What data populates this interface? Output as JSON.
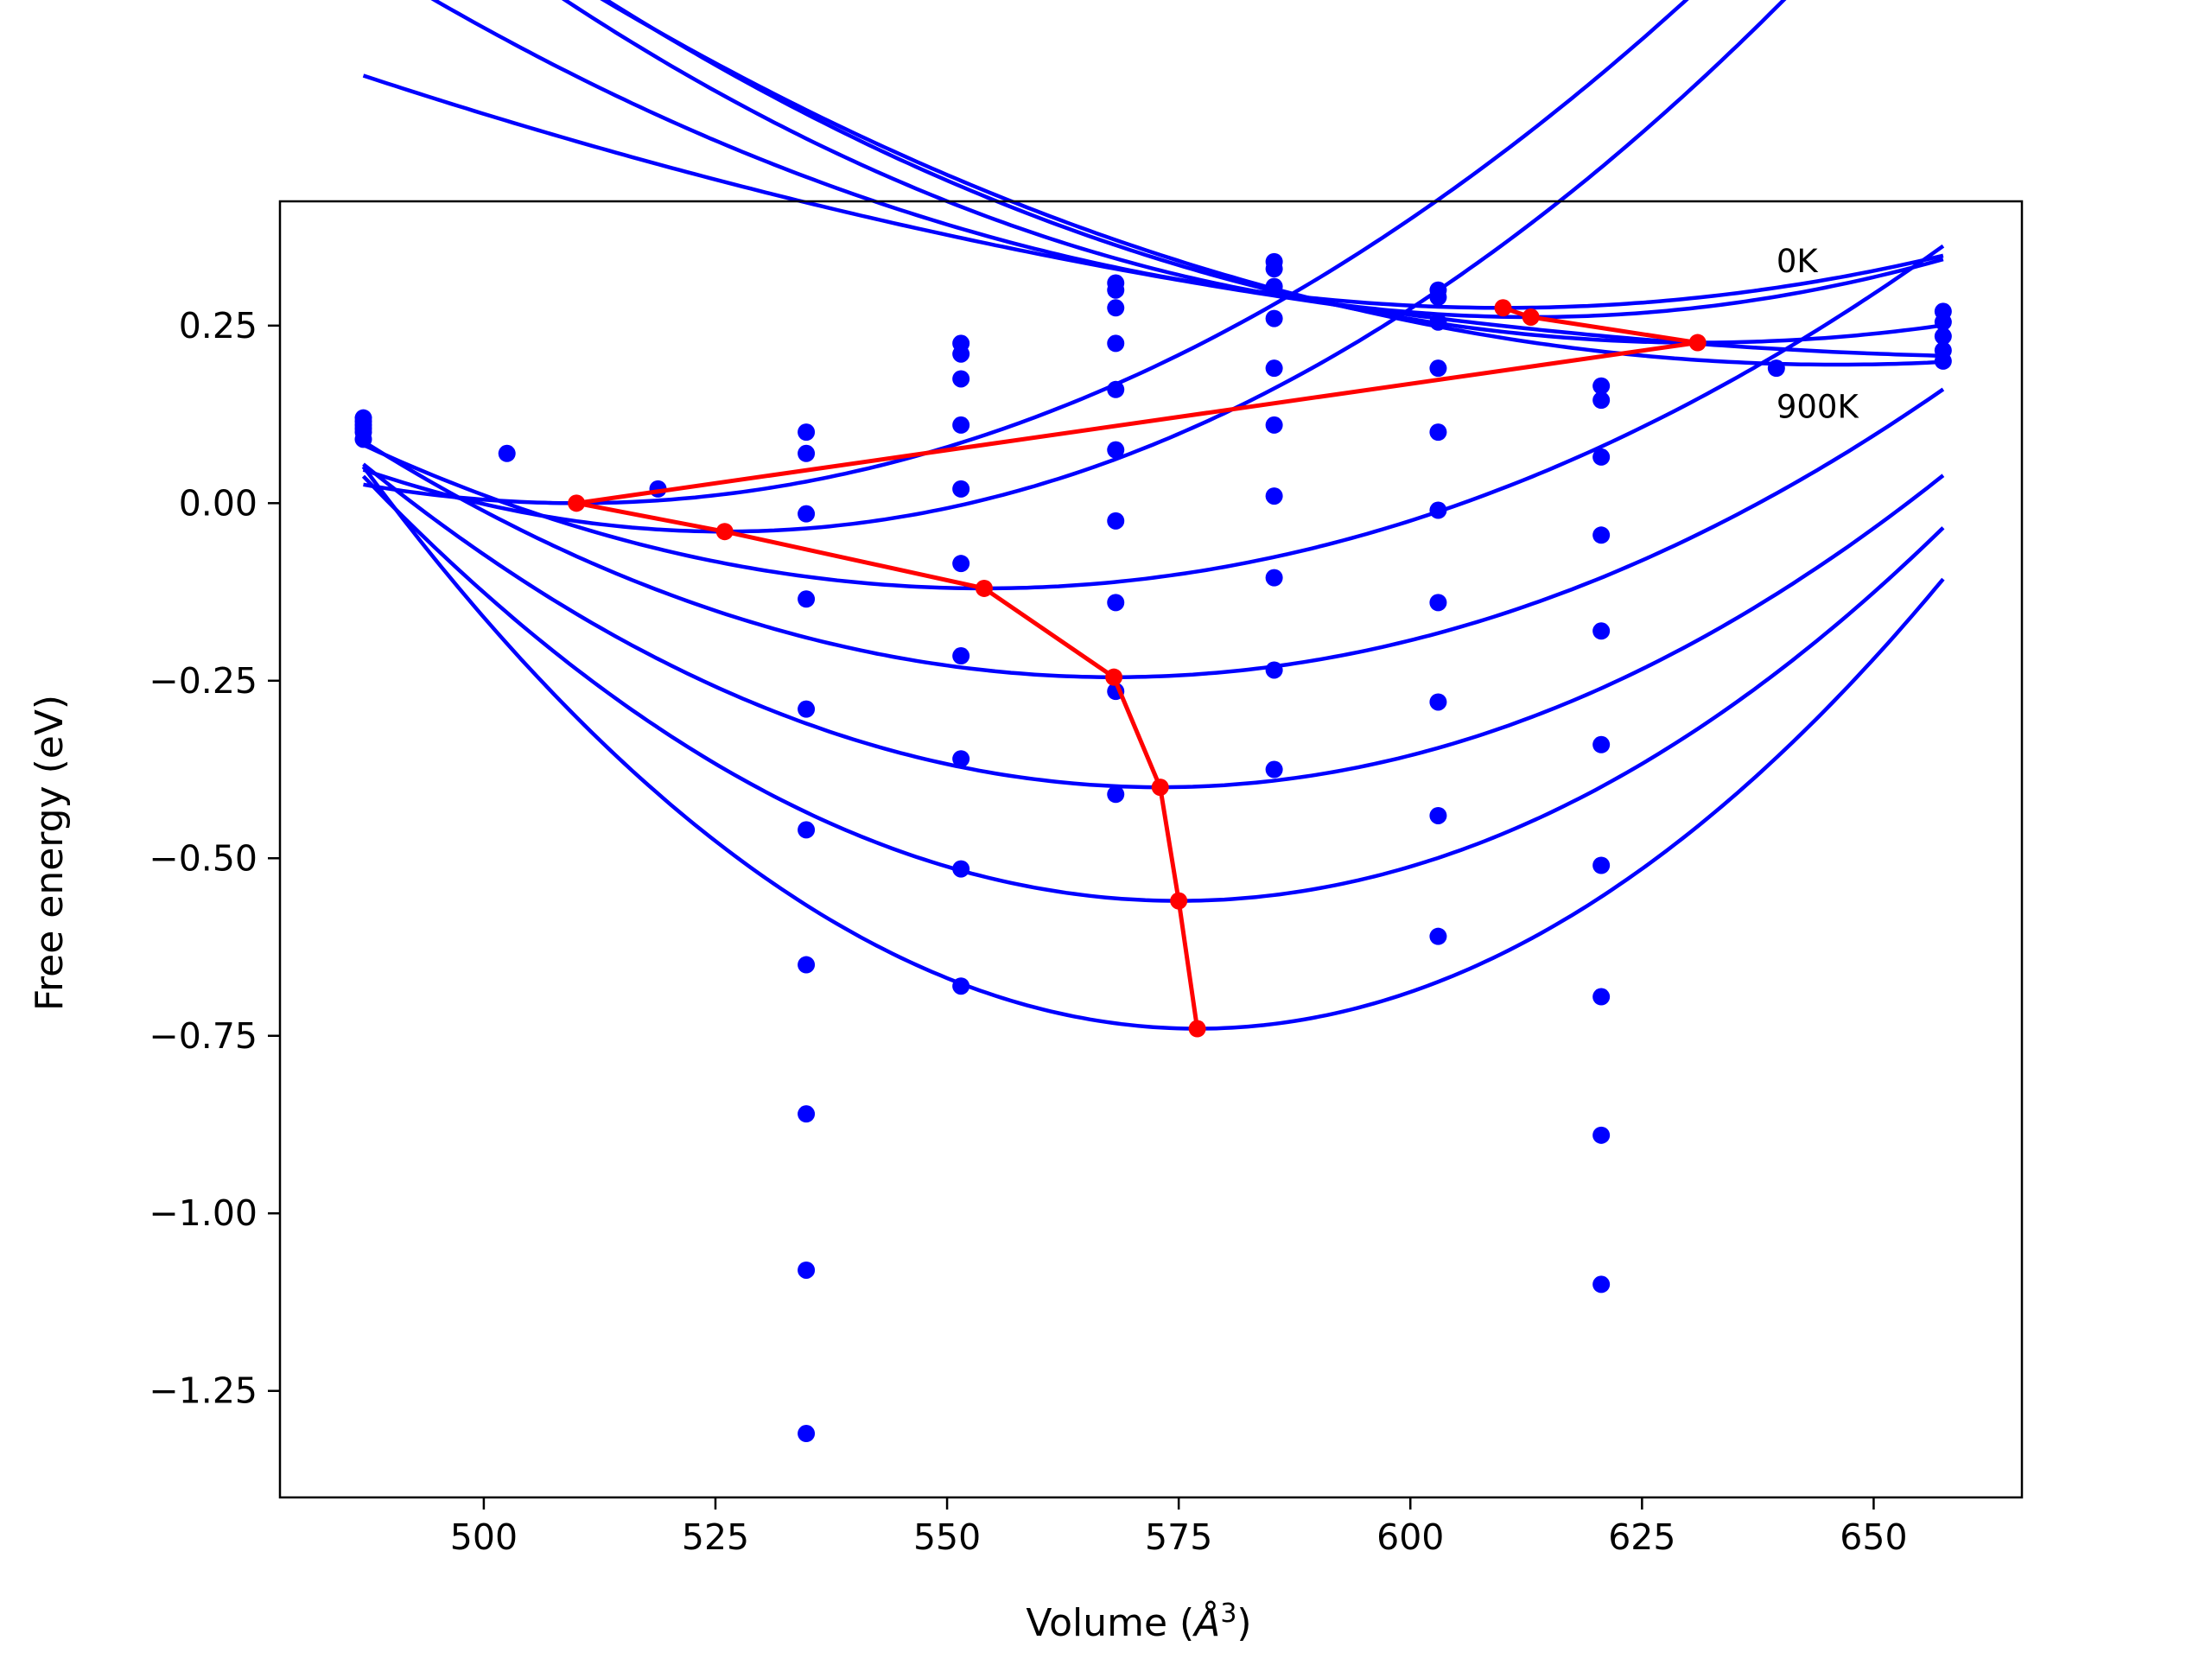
{
  "chart_data": {
    "type": "scatter",
    "xlabel_prefix": "Volume (",
    "xlabel_unit": "Å",
    "xlabel_exp": "3",
    "xlabel_suffix": ")",
    "ylabel": "Free energy (eV)",
    "xlim": [
      478,
      666
    ],
    "ylim": [
      -1.4,
      0.425
    ],
    "x_ticks": [
      500,
      525,
      550,
      575,
      600,
      625,
      650
    ],
    "x_tick_labels": [
      "500",
      "525",
      "550",
      "575",
      "600",
      "625",
      "650"
    ],
    "y_ticks": [
      0.25,
      0.0,
      -0.25,
      -0.5,
      -0.75,
      -1.0,
      -1.25
    ],
    "y_tick_labels": [
      "0.25",
      "0.00",
      "−0.25",
      "−0.50",
      "−0.75",
      "−1.00",
      "−1.25"
    ],
    "annotations": [
      {
        "text": "0K",
        "x": 639.5,
        "y": 0.325
      },
      {
        "text": "900K",
        "x": 639.5,
        "y": 0.12
      }
    ],
    "colors": {
      "fit": "#0000ff",
      "points": "#0000ff",
      "minimum": "#ff0000"
    },
    "x_range": [
      487,
      657.5
    ],
    "fit_curves": [
      {
        "vmin": 610,
        "fmin": 0.275,
        "k": 3.26e-05
      },
      {
        "vmin": 613,
        "fmin": 0.262,
        "k": 4.11e-05
      },
      {
        "vmin": 631,
        "fmin": 0.226,
        "k": 3.48e-05
      },
      {
        "vmin": 646,
        "fmin": 0.195,
        "k": 2.9e-05
      },
      {
        "vmin": 672,
        "fmin": 0.205,
        "k": 1.16e-05
      },
      {
        "vmin": 510,
        "fmin": 0.0,
        "k": 4.94e-05
      },
      {
        "vmin": 526,
        "fmin": -0.04,
        "k": 5.73e-05
      },
      {
        "vmin": 554,
        "fmin": -0.12,
        "k": 4.5e-05
      },
      {
        "vmin": 568,
        "fmin": -0.245,
        "k": 5.06e-05
      },
      {
        "vmin": 573,
        "fmin": -0.4,
        "k": 6.15e-05
      },
      {
        "vmin": 575,
        "fmin": -0.56,
        "k": 7.72e-05
      },
      {
        "vmin": 577,
        "fmin": -0.74,
        "k": 9.77e-05
      }
    ],
    "data_points": {
      "x": [
        487,
        502.5,
        518.8,
        534.8,
        551.5,
        568.2,
        585.3,
        603.0,
        620.6,
        639.5,
        657.5
      ],
      "y": [
        [
          0.09,
          0.1,
          0.105,
          0.11,
          0.115,
          0.12
        ],
        [
          0.07
        ],
        [
          0.02
        ],
        [
          0.1,
          0.07,
          -0.015,
          -0.135,
          -0.29,
          -0.46,
          -0.65,
          -0.86,
          -1.08,
          -1.31
        ],
        [
          0.225,
          0.21,
          0.175,
          0.11,
          0.02,
          -0.085,
          -0.215,
          -0.36,
          -0.515,
          -0.68
        ],
        [
          0.31,
          0.3,
          0.275,
          0.225,
          0.16,
          0.075,
          -0.025,
          -0.14,
          -0.265,
          -0.41
        ],
        [
          0.34,
          0.33,
          0.305,
          0.26,
          0.19,
          0.11,
          0.01,
          -0.105,
          -0.235,
          -0.375
        ],
        [
          0.3,
          0.29,
          0.255,
          0.19,
          0.1,
          -0.01,
          -0.14,
          -0.28,
          -0.44,
          -0.61
        ],
        [
          0.165,
          0.145,
          0.065,
          -0.045,
          -0.18,
          -0.34,
          -0.51,
          -0.695,
          -0.89,
          -1.1
        ],
        [
          0.19
        ],
        [
          0.27,
          0.255,
          0.235,
          0.215,
          0.2
        ]
      ]
    },
    "minimum_path": {
      "x": [
        610,
        613,
        631,
        510,
        526,
        554,
        568,
        573,
        575,
        577
      ],
      "y": [
        0.275,
        0.262,
        0.226,
        0.0,
        -0.04,
        -0.12,
        -0.245,
        -0.4,
        -0.56,
        -0.74
      ]
    }
  }
}
